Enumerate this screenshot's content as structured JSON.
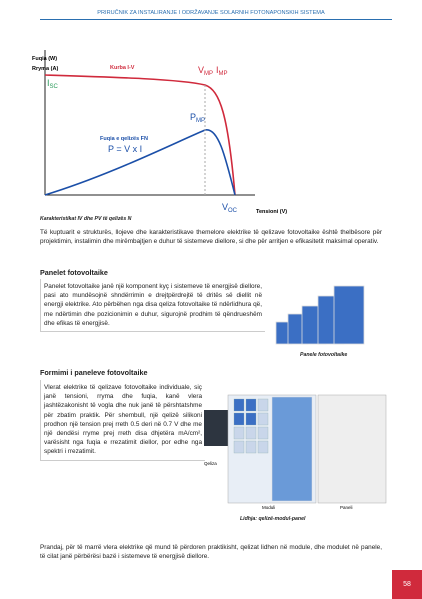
{
  "header": {
    "title": "PRIRUČNIK ZA INSTALIRANJE I ODRŽAVANJE SOLARNIH FOTONAPONSKIH SISTEMA"
  },
  "figure1": {
    "power_axis": "Fuqia (W)",
    "current_axis": "Rryma (A)",
    "iv_curve": "Kurba I-V",
    "vmp": {
      "main": "V",
      "sub": "MP"
    },
    "imp": {
      "main": "I",
      "sub": "MP"
    },
    "isc": {
      "main": "I",
      "sub": "SC"
    },
    "power_curve": "Fuqia e qelizës FN",
    "formula": "P = V x I",
    "pmp": {
      "main": "P",
      "sub": "MP"
    },
    "voc": {
      "main": "V",
      "sub": "OC"
    },
    "voltage_axis": "Tensioni (V)",
    "caption": "Karakteristikat IV dhe PV të qelizës N"
  },
  "paragraph1": "Të kuptuarit e strukturës, llojeve dhe karakteristikave themelore elektrike të qelizave fotovoltaike është thelbësore për projektimin, instalimin dhe mirëmbajtjen e duhur të sistemeve diellore, si dhe për arritjen e efikasitetit maksimal operativ.",
  "section1": {
    "heading": "Panelet fotovoltaike",
    "text": "Panelet fotovoltaike janë një komponent kyç i sistemeve të energjisë diellore, pasi ato mundësojnë shndërrimin e drejtpërdrejtë të dritës së diellit në energji elektrike. Ato përbëhen nga disa qeliza fotovoltaike të ndërlidhura që, me ndërtimin dhe pozicionimin e duhur, sigurojnë prodhim të qëndrueshëm dhe efikas të energjisë.",
    "caption": "Panele fotovoltaike"
  },
  "section2": {
    "heading": "Formimi i paneleve fotovoltaike",
    "text": "Vlerat elektrike të qelizave fotovoltaike individuale, siç janë tensioni, rryma dhe fuqia, kanë vlera jashtëzakonisht të vogla dhe nuk janë të përshtatshme për zbatim praktik. Për shembull, një qelizë silikoni prodhon një tension prej rreth 0.5 deri në 0.7 V dhe me një dendësi rryme prej rreth disa dhjetëra mA/cm², varësisht nga fuqia e rrezatimit diellor, por edhe nga spektri i rrezatimit.",
    "cell": "Qeliza",
    "module": "Moduli",
    "panel": "Paneli",
    "caption": "Lidhja: qelizë-modul-panel"
  },
  "paragraph4": "Prandaj, për të marrë vlera elektrike që mund të përdoren praktikisht, qelizat lidhen në module, dhe modulet në panele, të cilat janë përbërësi bazë i sistemeve të energjisë diellore.",
  "page_number": "58"
}
